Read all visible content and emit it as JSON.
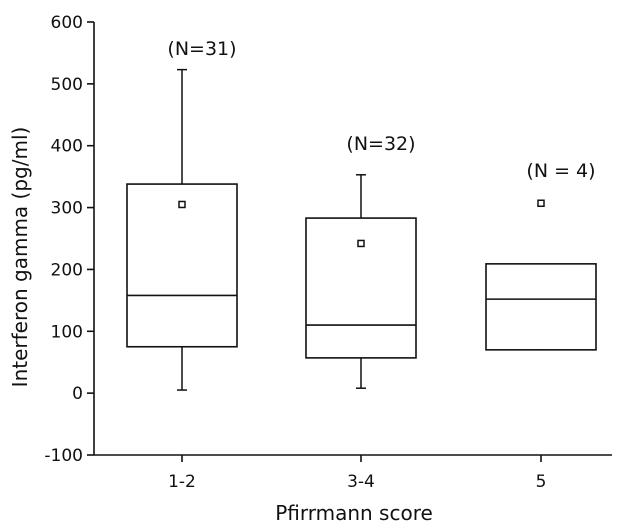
{
  "chart_data": {
    "type": "box",
    "xlabel": "Pfirrmann score",
    "ylabel": "Interferon gamma (pg/ml)",
    "ylim": [
      -100,
      600
    ],
    "yticks": [
      -100,
      0,
      100,
      200,
      300,
      400,
      500,
      600
    ],
    "categories": [
      "1-2",
      "3-4",
      "5"
    ],
    "annotations": [
      "(N=31)",
      "(N=32)",
      "(N = 4)"
    ],
    "boxes": [
      {
        "category": "1-2",
        "whisker_low": 5,
        "q1": 75,
        "median": 158,
        "q3": 338,
        "whisker_high": 523,
        "mean": 305
      },
      {
        "category": "3-4",
        "whisker_low": 8,
        "q1": 57,
        "median": 110,
        "q3": 283,
        "whisker_high": 353,
        "mean": 242
      },
      {
        "category": "5",
        "whisker_low": 70,
        "q1": 70,
        "median": 152,
        "q3": 209,
        "whisker_high": 209,
        "mean": 307
      }
    ],
    "grid": false,
    "legend": "none",
    "colors": {
      "line": "#111111",
      "background": "#ffffff"
    }
  }
}
